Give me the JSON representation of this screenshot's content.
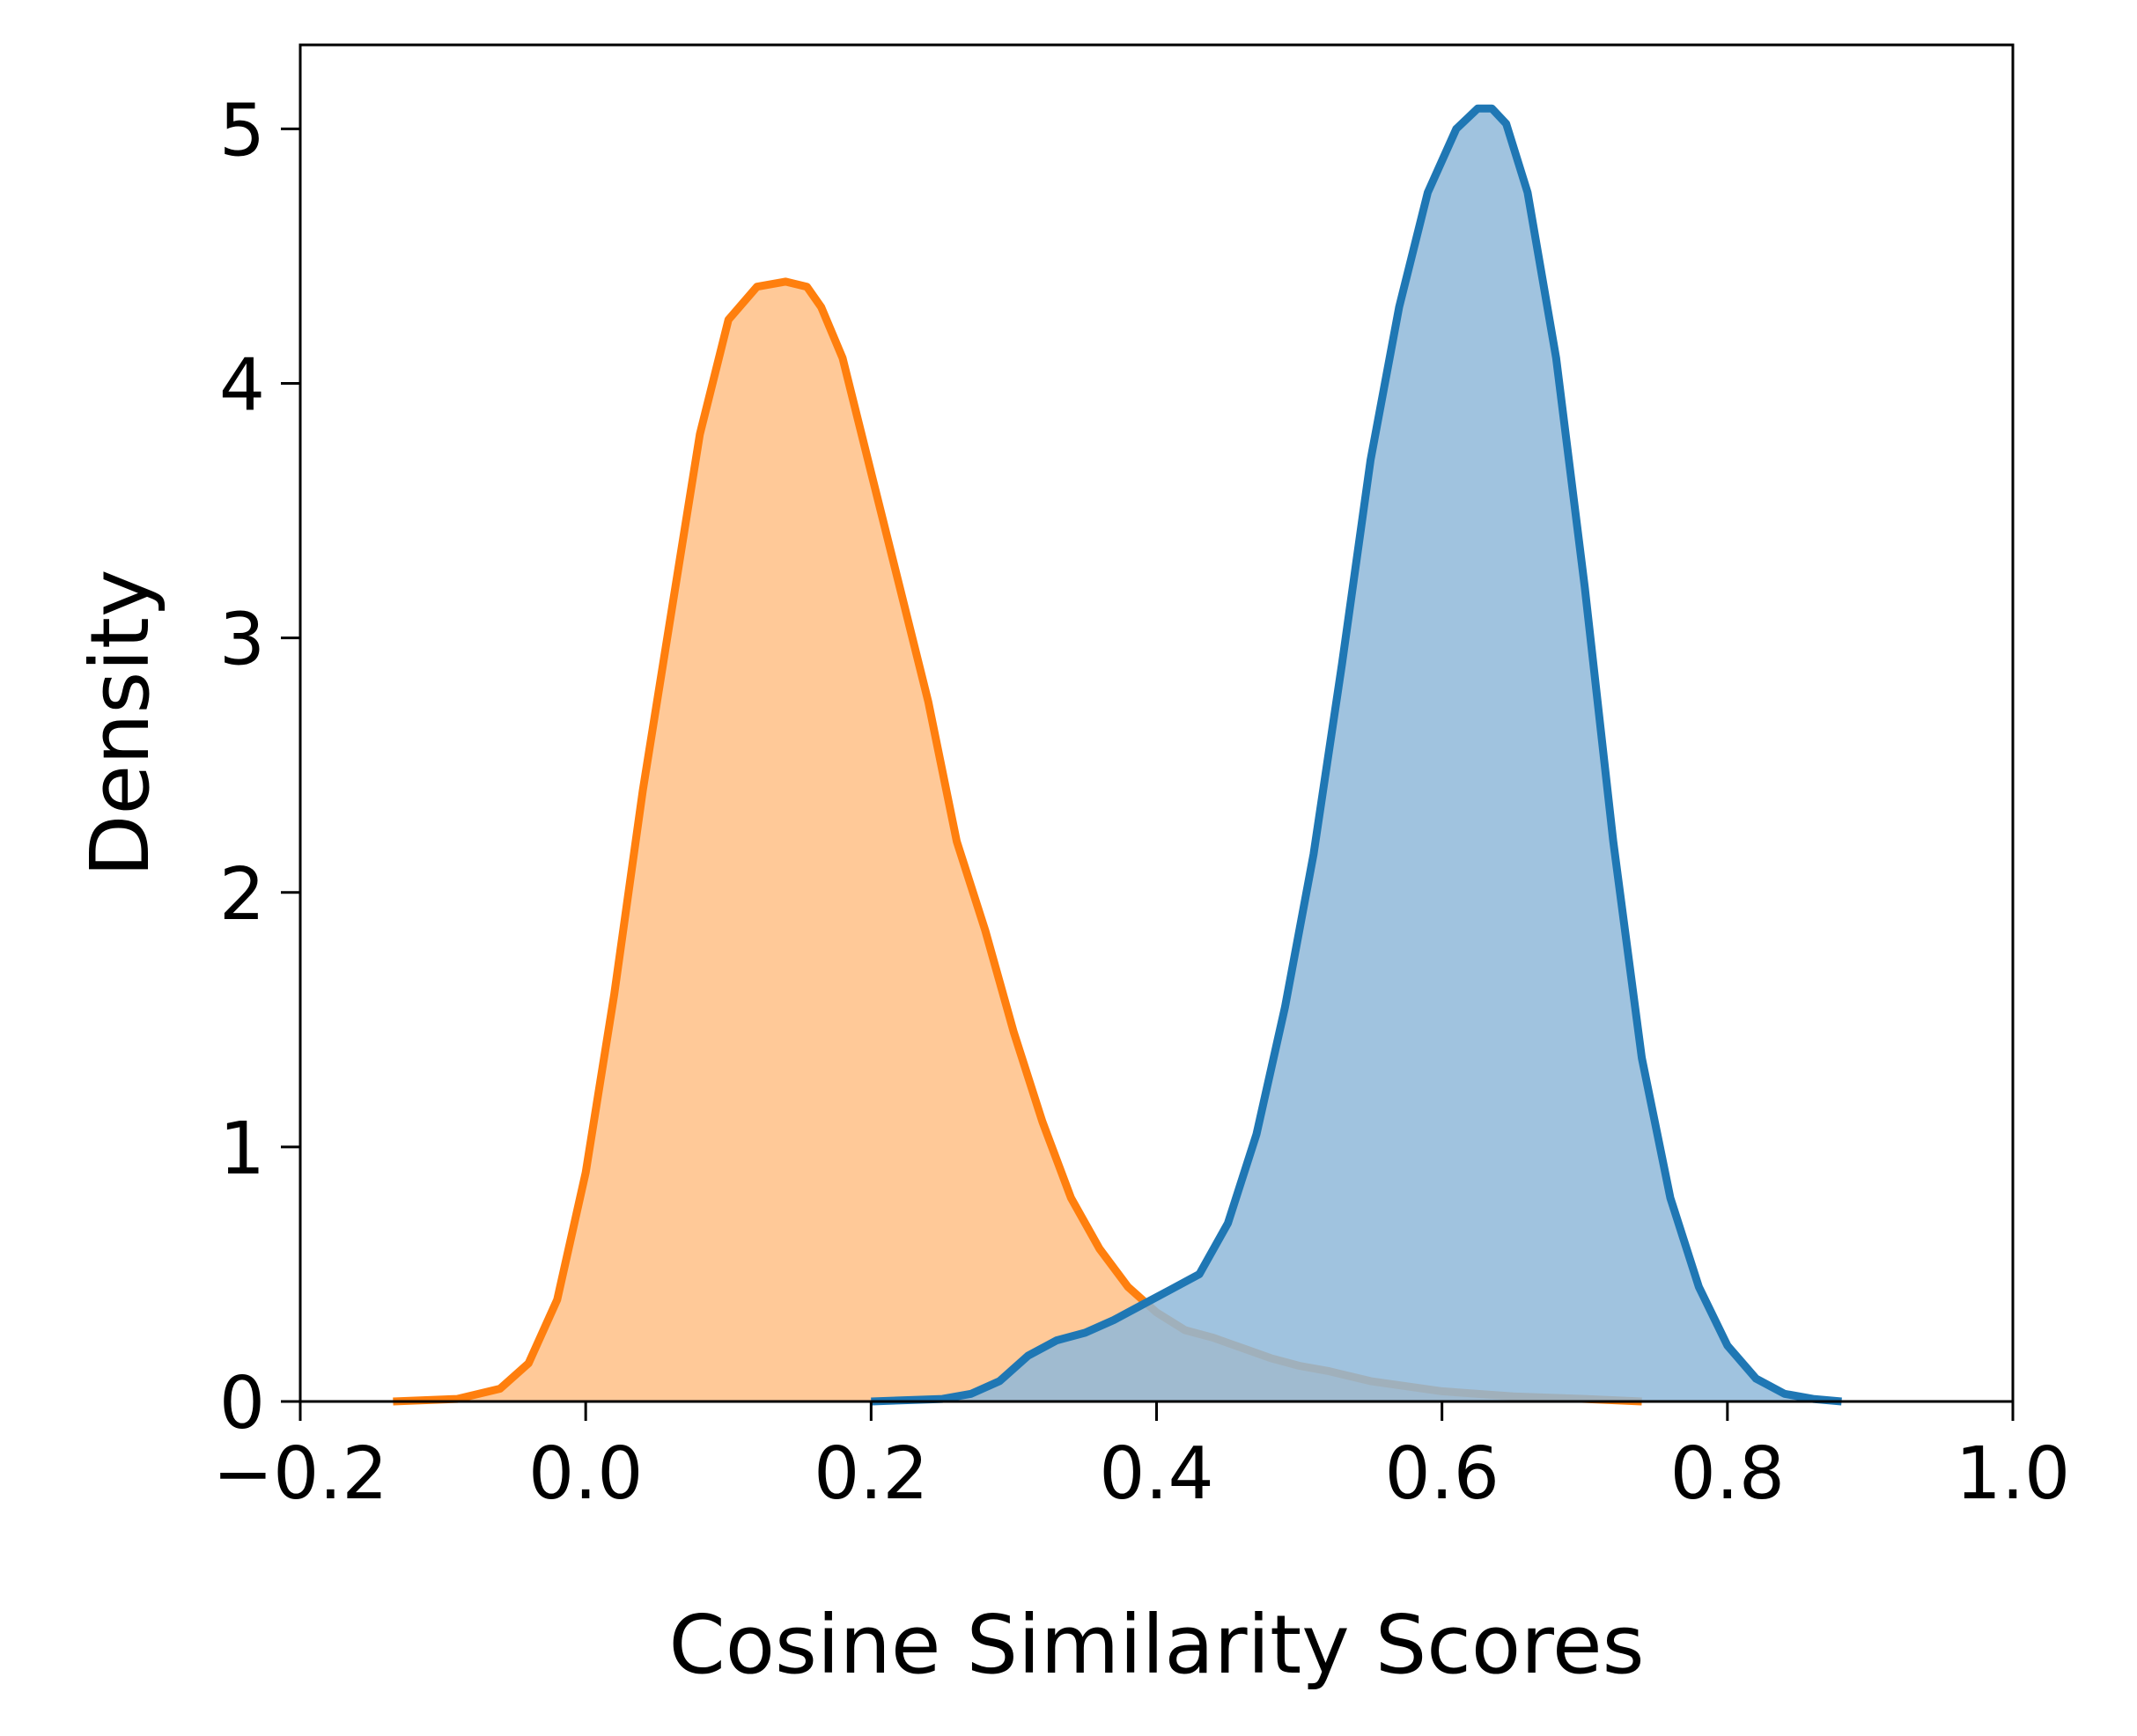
{
  "chart_data": {
    "type": "area",
    "title": "",
    "xlabel": "Cosine Similarity Scores",
    "ylabel": "Density",
    "xlim": [
      -0.2,
      1.0
    ],
    "ylim": [
      0,
      5.33
    ],
    "x_ticks": [
      -0.2,
      0.0,
      0.2,
      0.4,
      0.6,
      0.8,
      1.0
    ],
    "x_tick_labels": [
      "−0.2",
      "0.0",
      "0.2",
      "0.4",
      "0.6",
      "0.8",
      "1.0"
    ],
    "y_ticks": [
      0,
      1,
      2,
      3,
      4,
      5
    ],
    "y_tick_labels": [
      "0",
      "1",
      "2",
      "3",
      "4",
      "5"
    ],
    "grid": false,
    "legend": "none",
    "series": [
      {
        "color": "#ff7f0e",
        "fill": "#ffbf86",
        "x": [
          -0.135,
          -0.09,
          -0.06,
          -0.04,
          -0.02,
          0.0,
          0.02,
          0.04,
          0.06,
          0.08,
          0.1,
          0.12,
          0.14,
          0.155,
          0.165,
          0.18,
          0.2,
          0.22,
          0.24,
          0.26,
          0.28,
          0.3,
          0.32,
          0.34,
          0.36,
          0.38,
          0.4,
          0.42,
          0.44,
          0.46,
          0.48,
          0.5,
          0.52,
          0.55,
          0.6,
          0.65,
          0.7,
          0.74
        ],
        "y": [
          0.0,
          0.01,
          0.05,
          0.15,
          0.4,
          0.9,
          1.6,
          2.4,
          3.1,
          3.8,
          4.25,
          4.38,
          4.4,
          4.38,
          4.3,
          4.1,
          3.65,
          3.2,
          2.75,
          2.2,
          1.85,
          1.45,
          1.1,
          0.8,
          0.6,
          0.45,
          0.35,
          0.28,
          0.25,
          0.21,
          0.17,
          0.14,
          0.12,
          0.08,
          0.04,
          0.02,
          0.01,
          0.0
        ]
      },
      {
        "color": "#1f77b4",
        "fill": "#8fb9d9",
        "x": [
          0.2,
          0.25,
          0.27,
          0.29,
          0.31,
          0.33,
          0.35,
          0.37,
          0.39,
          0.41,
          0.43,
          0.45,
          0.47,
          0.49,
          0.51,
          0.53,
          0.55,
          0.57,
          0.59,
          0.61,
          0.625,
          0.635,
          0.645,
          0.66,
          0.68,
          0.7,
          0.72,
          0.74,
          0.76,
          0.78,
          0.8,
          0.82,
          0.84,
          0.86,
          0.88
        ],
        "y": [
          0.0,
          0.01,
          0.03,
          0.08,
          0.18,
          0.24,
          0.27,
          0.32,
          0.38,
          0.44,
          0.5,
          0.7,
          1.05,
          1.55,
          2.15,
          2.9,
          3.7,
          4.3,
          4.75,
          5.0,
          5.08,
          5.08,
          5.02,
          4.75,
          4.1,
          3.2,
          2.2,
          1.35,
          0.8,
          0.45,
          0.22,
          0.09,
          0.03,
          0.01,
          0.0
        ]
      }
    ]
  }
}
